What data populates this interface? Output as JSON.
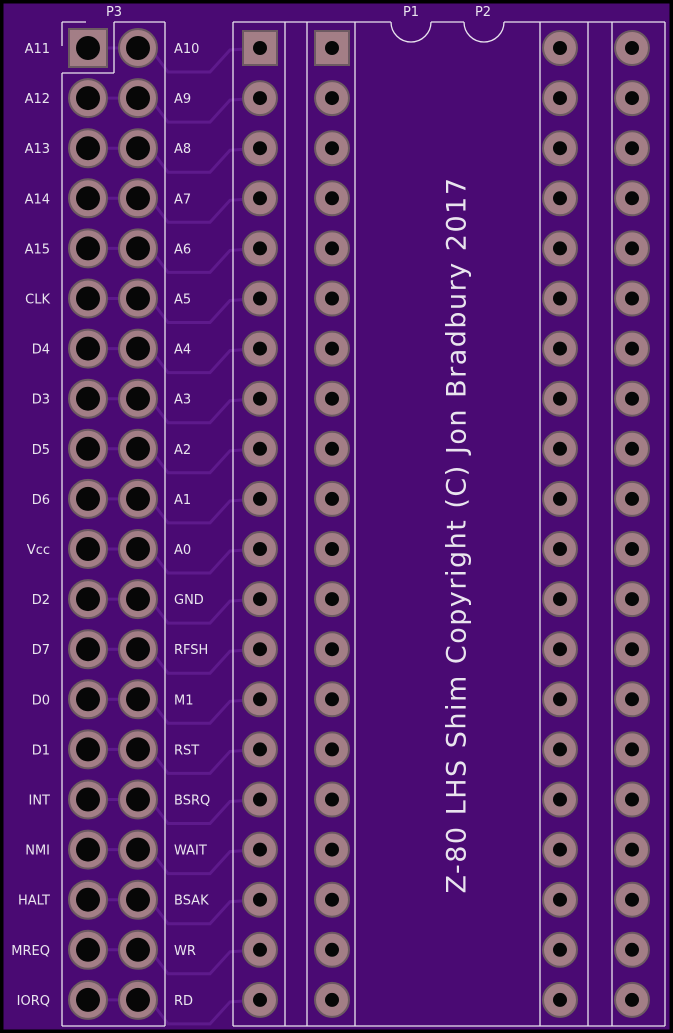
{
  "colors": {
    "board": "#4a0a73",
    "trace": "#5e1a8c",
    "pad": "#a37e86",
    "pad_rim": "#6d5a62",
    "hole": "#070707",
    "silkscreen": "#e9e4ee",
    "edge": "#000000"
  },
  "connector": {
    "ref": "P3",
    "left_labels": [
      "A11",
      "A12",
      "A13",
      "A14",
      "A15",
      "CLK",
      "D4",
      "D3",
      "D5",
      "D6",
      "Vcc",
      "D2",
      "D7",
      "D0",
      "D1",
      "INT",
      "NMI",
      "HALT",
      "MREQ",
      "IORQ"
    ],
    "right_labels": [
      "A10",
      "A9",
      "A8",
      "A7",
      "A6",
      "A5",
      "A4",
      "A3",
      "A2",
      "A1",
      "A0",
      "GND",
      "RFSH",
      "M1",
      "RST",
      "BSRQ",
      "WAIT",
      "BSAK",
      "WR",
      "RD"
    ]
  },
  "headers": {
    "p1_label": "P1",
    "p2_label": "P2",
    "pins_per_row": 20
  },
  "board_text": {
    "title": "Z-80 LHS Shim Copyright (C) Jon Bradbury 2017"
  }
}
